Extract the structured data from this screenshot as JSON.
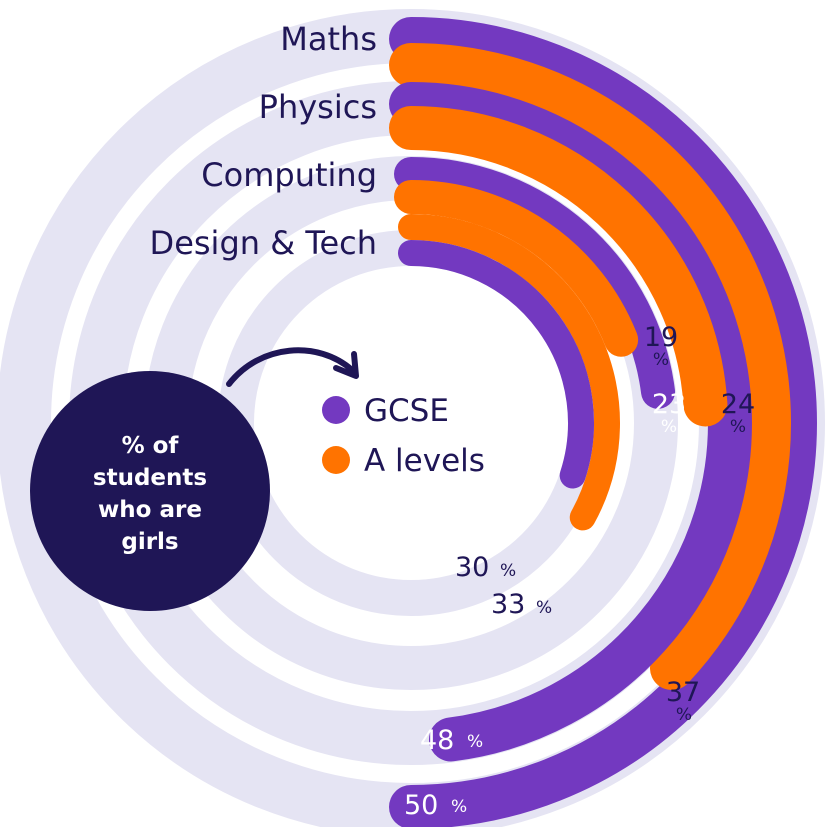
{
  "chart_data": {
    "type": "radial-bar",
    "title": "",
    "note": [
      "% of",
      "students",
      "who are",
      "girls"
    ],
    "categories": [
      "Maths",
      "Physics",
      "Computing",
      "Design & Tech"
    ],
    "series": [
      {
        "name": "GCSE",
        "values": [
          50,
          48,
          23,
          30
        ],
        "color": "#7339c0"
      },
      {
        "name": "A levels",
        "values": [
          37,
          24,
          19,
          33
        ],
        "color": "#ff7300"
      }
    ],
    "unit": "%",
    "track_color": "#e5e4f3",
    "text_color": "#1f1656",
    "note_color": "#1f1656"
  }
}
